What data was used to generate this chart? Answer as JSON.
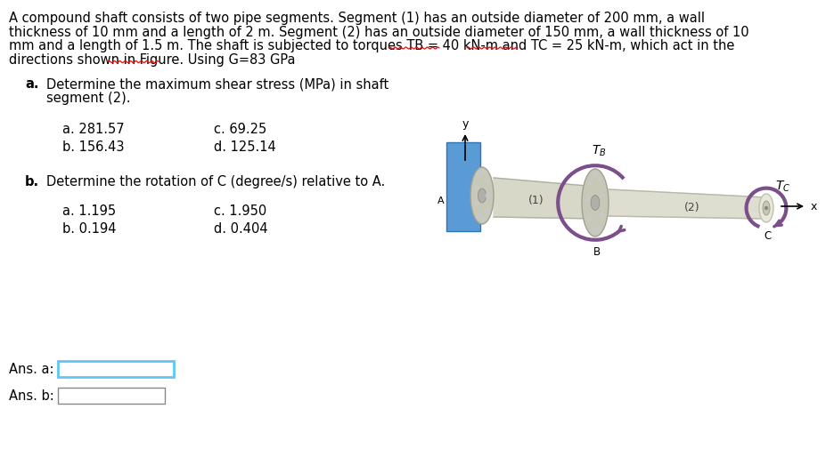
{
  "background_color": "#ffffff",
  "header_lines": [
    "A compound shaft consists of two pipe segments. Segment (1) has an outside diameter of 200 mm, a wall",
    "thickness of 10 mm and a length of 2 m. Segment (2) has an outside diameter of 150 mm, a wall thickness of 10",
    "mm and a length of 1.5 m. The shaft is subjected to torques TB = 40 kN-m and TC = 25 kN-m, which act in the",
    "directions shown in Figure. Using G=83 GPa"
  ],
  "text_color": "#000000",
  "font_size": 10.5,
  "qa_label": "a.",
  "qa_text1": "Determine the maximum shear stress (MPa) in shaft",
  "qa_text2": "segment (2).",
  "choice_a1": "a. 281.57",
  "choice_a2": "c. 69.25",
  "choice_a3": "b. 156.43",
  "choice_a4": "d. 125.14",
  "qb_label": "b.",
  "qb_text": "Determine the rotation of C (degree/s) relative to A.",
  "choice_b1": "a. 1.195",
  "choice_b2": "c. 1.950",
  "choice_b3": "b. 0.194",
  "choice_b4": "d. 0.404",
  "ans_a_label": "Ans. a:",
  "ans_b_label": "Ans. b:",
  "wall_color": "#5b9bd5",
  "wall_edge_color": "#2e75b6",
  "shaft_color": "#d8d8c8",
  "shaft_edge_color": "#b0b0a0",
  "flange_color": "#c8c8b8",
  "flange_edge_color": "#a0a090",
  "bolt_color": "#c8c8c8",
  "purple_color": "#7b4f8a",
  "ans_box_a_color": "#5bc8f5",
  "ans_box_b_color": "#888888"
}
